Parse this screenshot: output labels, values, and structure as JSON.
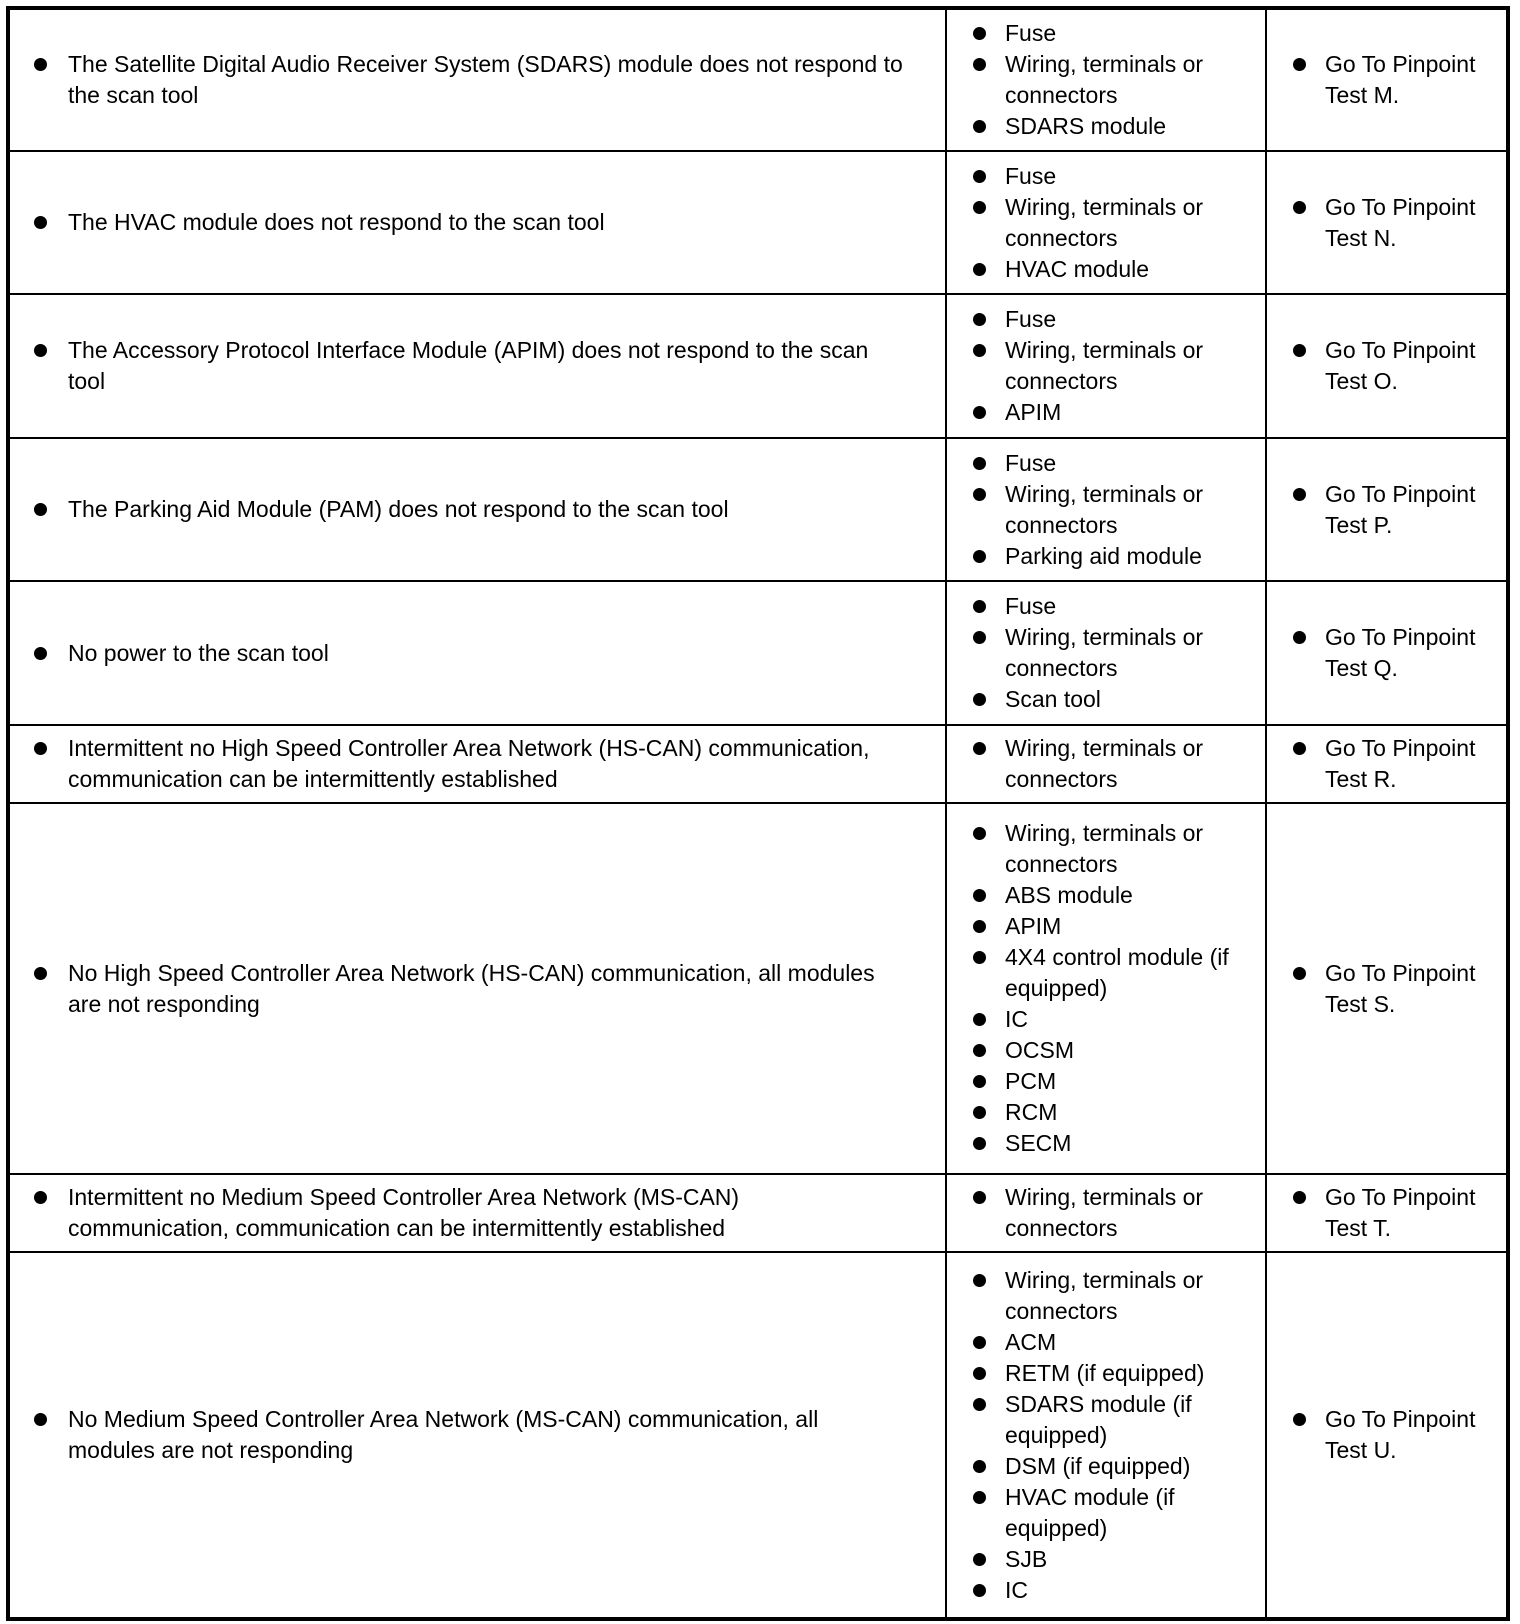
{
  "rows": [
    {
      "symptom": "The Satellite Digital Audio Receiver System (SDARS) module does not respond to the scan tool",
      "causes": [
        "Fuse",
        "Wiring, terminals or connectors",
        "SDARS module"
      ],
      "action": "Go To Pinpoint Test M."
    },
    {
      "symptom": "The HVAC module does not respond to the scan tool",
      "causes": [
        "Fuse",
        "Wiring, terminals or connectors",
        "HVAC module"
      ],
      "action": "Go To Pinpoint Test N."
    },
    {
      "symptom": "The Accessory Protocol Interface Module (APIM) does not respond to the scan tool",
      "causes": [
        "Fuse",
        "Wiring, terminals or connectors",
        "APIM"
      ],
      "action": "Go To Pinpoint Test O."
    },
    {
      "symptom": "The Parking Aid Module (PAM) does not respond to the scan tool",
      "causes": [
        "Fuse",
        "Wiring, terminals or connectors",
        "Parking aid module"
      ],
      "action": "Go To Pinpoint Test P."
    },
    {
      "symptom": "No power to the scan tool",
      "causes": [
        "Fuse",
        "Wiring, terminals or connectors",
        "Scan tool"
      ],
      "action": "Go To Pinpoint Test Q."
    },
    {
      "symptom": "Intermittent no High Speed Controller Area Network (HS-CAN) communication, communication can be intermittently established",
      "causes": [
        "Wiring, terminals or connectors"
      ],
      "action": "Go To Pinpoint Test R."
    },
    {
      "symptom": "No High Speed Controller Area Network (HS-CAN) communication, all modules are not responding",
      "causes": [
        "Wiring, terminals or connectors",
        "ABS module",
        "APIM",
        "4X4 control module (if equipped)",
        "IC",
        "OCSM",
        "PCM",
        "RCM",
        "SECM"
      ],
      "action": "Go To Pinpoint Test S."
    },
    {
      "symptom": "Intermittent no Medium Speed Controller Area Network (MS-CAN) communication, communication can be intermittently established",
      "causes": [
        "Wiring, terminals or connectors"
      ],
      "action": "Go To Pinpoint Test T."
    },
    {
      "symptom": "No Medium Speed Controller Area Network (MS-CAN) communication, all modules are not responding",
      "causes": [
        "Wiring, terminals or connectors",
        "ACM",
        "RETM (if equipped)",
        "SDARS module (if equipped)",
        "DSM (if equipped)",
        "HVAC module (if equipped)",
        "SJB",
        "IC"
      ],
      "action": "Go To Pinpoint Test U."
    }
  ]
}
